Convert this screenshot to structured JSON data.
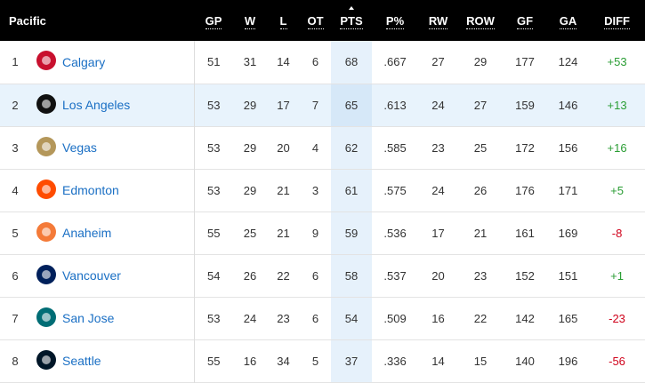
{
  "header": {
    "title": "Pacific",
    "columns": [
      "GP",
      "W",
      "L",
      "OT",
      "PTS",
      "P%",
      "RW",
      "ROW",
      "GF",
      "GA",
      "DIFF"
    ]
  },
  "table": {
    "rows": [
      {
        "rank": 1,
        "team": "Calgary",
        "stats": [
          51,
          31,
          14,
          6,
          68,
          ".667",
          27,
          29,
          177,
          124,
          "+53"
        ]
      },
      {
        "rank": 2,
        "team": "Los Angeles",
        "stats": [
          53,
          29,
          17,
          7,
          65,
          ".613",
          24,
          27,
          159,
          146,
          "+13"
        ]
      },
      {
        "rank": 3,
        "team": "Vegas",
        "stats": [
          53,
          29,
          20,
          4,
          62,
          ".585",
          23,
          25,
          172,
          156,
          "+16"
        ]
      },
      {
        "rank": 4,
        "team": "Edmonton",
        "stats": [
          53,
          29,
          21,
          3,
          61,
          ".575",
          24,
          26,
          176,
          171,
          "+5"
        ]
      },
      {
        "rank": 5,
        "team": "Anaheim",
        "stats": [
          55,
          25,
          21,
          9,
          59,
          ".536",
          17,
          21,
          161,
          169,
          "-8"
        ]
      },
      {
        "rank": 6,
        "team": "Vancouver",
        "stats": [
          54,
          26,
          22,
          6,
          58,
          ".537",
          20,
          23,
          152,
          151,
          "+1"
        ]
      },
      {
        "rank": 7,
        "team": "San Jose",
        "stats": [
          53,
          24,
          23,
          6,
          54,
          ".509",
          16,
          22,
          142,
          165,
          "-23"
        ]
      },
      {
        "rank": 8,
        "team": "Seattle",
        "stats": [
          55,
          16,
          34,
          5,
          37,
          ".336",
          14,
          15,
          140,
          196,
          "-56"
        ]
      }
    ]
  }
}
